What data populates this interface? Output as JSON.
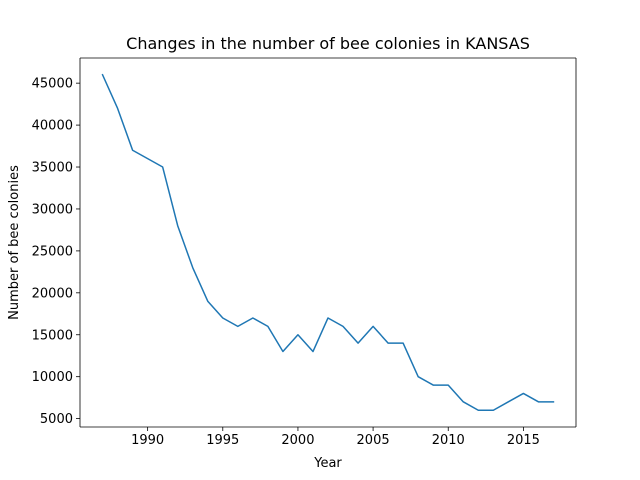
{
  "chart_data": {
    "type": "line",
    "title": "Changes in the number of bee colonies in KANSAS",
    "xlabel": "Year",
    "ylabel": "Number of bee colonies",
    "xlim": [
      1985.5,
      2018.5
    ],
    "ylim": [
      4000,
      48000
    ],
    "xticks": [
      1990,
      1995,
      2000,
      2005,
      2010,
      2015
    ],
    "yticks": [
      5000,
      10000,
      15000,
      20000,
      25000,
      30000,
      35000,
      40000,
      45000
    ],
    "grid": false,
    "line_color": "#1f77b4",
    "x": [
      1987,
      1988,
      1989,
      1990,
      1991,
      1992,
      1993,
      1994,
      1995,
      1996,
      1997,
      1998,
      1999,
      2000,
      2001,
      2002,
      2003,
      2004,
      2005,
      2006,
      2007,
      2008,
      2009,
      2010,
      2011,
      2012,
      2013,
      2014,
      2015,
      2016,
      2017
    ],
    "y": [
      46000,
      42000,
      37000,
      36000,
      35000,
      28000,
      23000,
      19000,
      17000,
      16000,
      17000,
      16000,
      13000,
      15000,
      13000,
      17000,
      16000,
      14000,
      16000,
      14000,
      14000,
      10000,
      9000,
      9000,
      7000,
      6000,
      6000,
      7000,
      8000,
      7000,
      7000
    ]
  }
}
